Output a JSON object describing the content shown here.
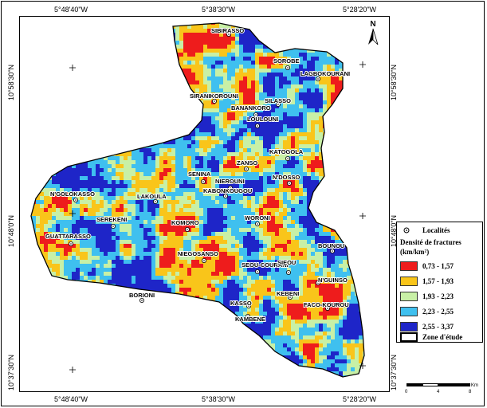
{
  "colors": {
    "class1": "#ee1c1c",
    "class2": "#f9c51a",
    "class3": "#c8f0a6",
    "class4": "#3fc0ef",
    "class5": "#1e25c8",
    "boundary": "#000000"
  },
  "coordinates": {
    "top": [
      "5°48'40\"W",
      "5°38'30\"W",
      "5°28'20\"W"
    ],
    "bottom": [
      "5°48'40\"W",
      "5°38'30\"W",
      "5°28'20\"W"
    ],
    "left": [
      "10°58'30\"N",
      "10°48'0\"N",
      "10°37'30\"N"
    ],
    "right": [
      "10°58'30\"N",
      "10°48'0\"N",
      "10°37'30\"N"
    ]
  },
  "north_arrow": {
    "label": "N"
  },
  "legend": {
    "localities_label": "Localités",
    "density_title_line1": "Densité de fractures",
    "density_title_line2": "(km/km²)",
    "classes": [
      {
        "label": "0,73 - 1,57",
        "color_key": "class1"
      },
      {
        "label": "1,57 - 1,93",
        "color_key": "class2"
      },
      {
        "label": "1,93 - 2,23",
        "color_key": "class3"
      },
      {
        "label": "2,23 - 2,55",
        "color_key": "class4"
      },
      {
        "label": "2,55 - 3,37",
        "color_key": "class5"
      }
    ],
    "study_zone_label": "Zone d'étude"
  },
  "scale_bar": {
    "ticks": [
      "0",
      "4",
      "8"
    ],
    "unit": "Km"
  },
  "localities": [
    "SIBIRASSO",
    "SOROBE",
    "LAGBOKOURANI",
    "SIRANIKOROUNI",
    "SILASSO",
    "BANANKORO",
    "LOULOUNI",
    "KATOGOLA",
    "ZANSO",
    "SENINA",
    "NIEROUNI",
    "N'DOSSO",
    "KABONKOUGOU",
    "N'GOLOKASSO",
    "LAKOULA",
    "SEREKENI",
    "WORONI",
    "KOMORO",
    "GUATTARASSO",
    "NIEGOSANSO",
    "BOUNOU",
    "SEOU-COURANI",
    "SIEOU",
    "N'GUINSO",
    "BORIONI",
    "KEBENI",
    "FACO-KOUROU",
    "KASSO",
    "KAMBENE"
  ]
}
